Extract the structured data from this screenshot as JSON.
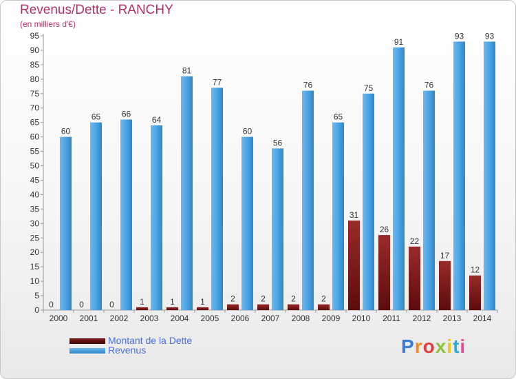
{
  "header": {
    "title": "Revenus/Dette - RANCHY",
    "subtitle": "(en milliers d'€)"
  },
  "colors": {
    "revenus": "#4ba3e3",
    "dette": "#8b1a1a",
    "title": "#b0316a",
    "legend_text": "#4a6fe0"
  },
  "chart_data": {
    "type": "bar",
    "categories": [
      "2000",
      "2001",
      "2002",
      "2003",
      "2004",
      "2005",
      "2006",
      "2007",
      "2008",
      "2009",
      "2010",
      "2011",
      "2012",
      "2013",
      "2014"
    ],
    "series": [
      {
        "name": "Montant de la Dette",
        "values": [
          0,
          0,
          0,
          1,
          1,
          1,
          2,
          2,
          2,
          2,
          31,
          26,
          22,
          17,
          12
        ]
      },
      {
        "name": "Revenus",
        "values": [
          60,
          65,
          66,
          64,
          81,
          77,
          60,
          56,
          76,
          65,
          75,
          91,
          76,
          93,
          93
        ]
      }
    ],
    "title": "Revenus/Dette - RANCHY",
    "ylabel": "",
    "xlabel": "",
    "ylim": [
      0,
      95
    ],
    "ytick_step": 5,
    "grid": false,
    "legend_position": "bottom-left"
  },
  "legend": {
    "items": [
      {
        "label": "Montant de la Dette"
      },
      {
        "label": "Revenus"
      }
    ]
  },
  "logo": {
    "letters": [
      "P",
      "r",
      "o",
      "x",
      "i",
      "t",
      "i"
    ],
    "colors": [
      "#3a7bd5",
      "#f08a24",
      "#e23b3b",
      "#8fc43a",
      "#f0c419",
      "#2fa8d8",
      "#e84a8f"
    ]
  }
}
